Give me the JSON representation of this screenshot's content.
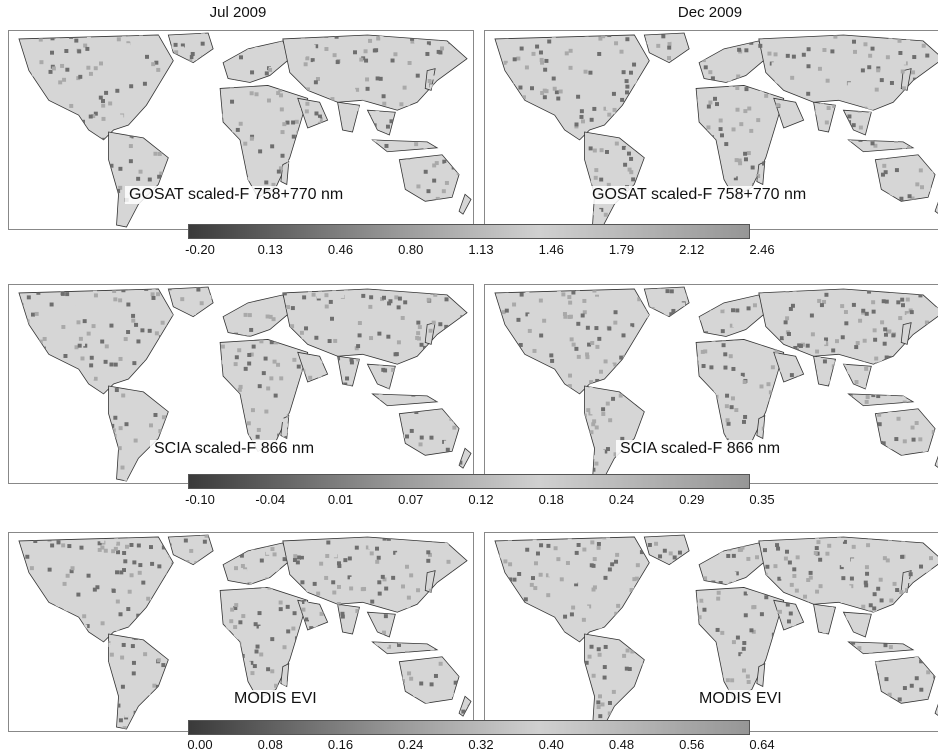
{
  "columns": [
    "Jul 2009",
    "Dec 2009"
  ],
  "rows": [
    {
      "panels": [
        {
          "label": "GOSAT scaled-F 758+770 nm"
        },
        {
          "label": "GOSAT scaled-F 758+770 nm"
        }
      ],
      "colorbar": {
        "ticks": [
          "-0.20",
          "0.13",
          "0.46",
          "0.80",
          "1.13",
          "1.46",
          "1.79",
          "2.12",
          "2.46"
        ],
        "colors": [
          "#3a3a3a",
          "#5a5a5a",
          "#7a7a7a",
          "#999999",
          "#b5b5b5",
          "#d0d0d0",
          "#bdbdbd",
          "#a8a8a8",
          "#969696"
        ]
      }
    },
    {
      "panels": [
        {
          "label": "SCIA scaled-F 866 nm"
        },
        {
          "label": "SCIA scaled-F 866 nm"
        }
      ],
      "colorbar": {
        "ticks": [
          "-0.10",
          "-0.04",
          "0.01",
          "0.07",
          "0.12",
          "0.18",
          "0.24",
          "0.29",
          "0.35"
        ],
        "colors": [
          "#3a3a3a",
          "#5a5a5a",
          "#7a7a7a",
          "#999999",
          "#b5b5b5",
          "#d0d0d0",
          "#bdbdbd",
          "#a8a8a8",
          "#969696"
        ]
      }
    },
    {
      "panels": [
        {
          "label": "MODIS EVI"
        },
        {
          "label": "MODIS EVI"
        }
      ],
      "colorbar": {
        "ticks": [
          "0.00",
          "0.08",
          "0.16",
          "0.24",
          "0.32",
          "0.40",
          "0.48",
          "0.56",
          "0.64"
        ],
        "colors": [
          "#3a3a3a",
          "#5a5a5a",
          "#7a7a7a",
          "#999999",
          "#b5b5b5",
          "#d0d0d0",
          "#bdbdbd",
          "#a8a8a8",
          "#969696"
        ]
      }
    }
  ],
  "colors": {
    "land_light": "#d6d6d6",
    "land_mid": "#a9a9a9",
    "land_dark": "#6e6e6e",
    "ocean": "#ffffff",
    "coast": "#333333"
  }
}
